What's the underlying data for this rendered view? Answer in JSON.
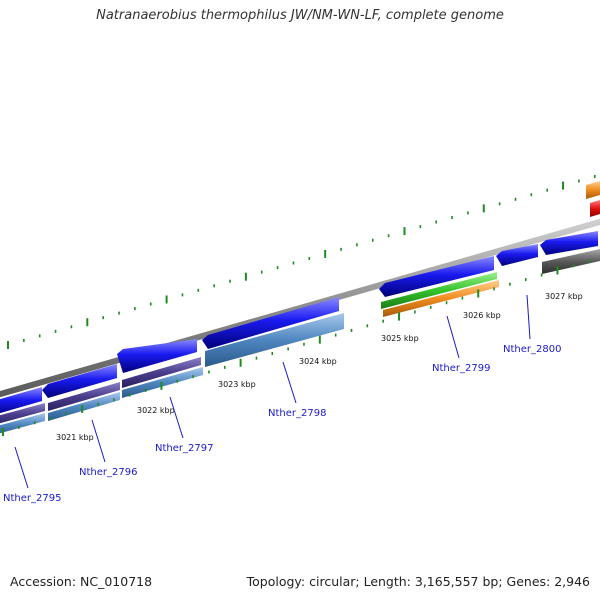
{
  "title": "Natranaerobius thermophilus JW/NM-WN-LF, complete genome",
  "footer": {
    "accession": "Accession: NC_010718",
    "summary": "Topology: circular; Length: 3,165,557 bp; Genes: 2,946"
  },
  "colors": {
    "backbone": "#8c8c8c",
    "cds": "#1010e0",
    "blast_purple": "#4a3d8c",
    "blast_steel": "#4f86c0",
    "blast_green": "#34c32a",
    "blast_orange": "#f08c1e",
    "blast_red": "#e01010",
    "blast_gray": "#595959",
    "ticks": "#1e8c1e",
    "label_text": "#1a1acc",
    "label_line": "#1a1acc"
  },
  "kbp_labels": [
    "3021 kbp",
    "3022 kbp",
    "3023 kbp",
    "3024 kbp",
    "3025 kbp",
    "3026 kbp",
    "3027 kbp"
  ],
  "gene_labels": [
    "Nther_2795",
    "Nther_2796",
    "Nther_2797",
    "Nther_2798",
    "Nther_2799",
    "Nther_2800"
  ]
}
